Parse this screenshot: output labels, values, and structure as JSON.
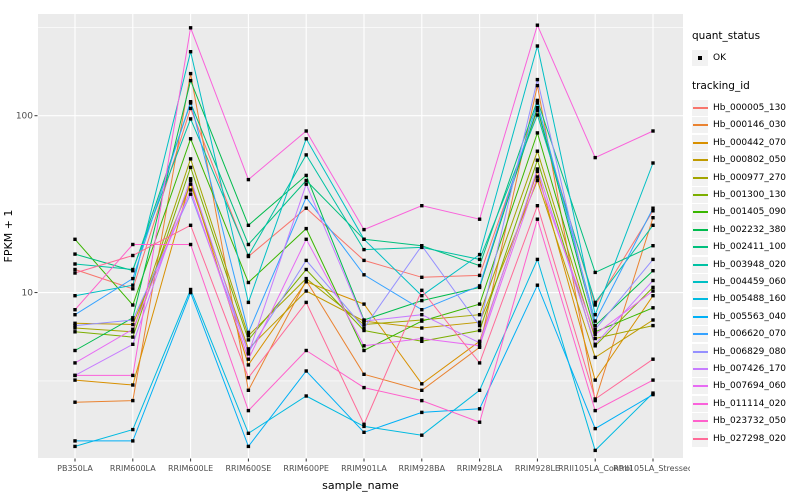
{
  "figure": {
    "background": "#FFFFFF",
    "panel_background": "#EBEBEB",
    "grid_color": "#FFFFFF",
    "axis_text_color": "#4D4D4D",
    "tick_color": "#333333",
    "point_color": "#000000",
    "legend_key_background": "#F2F2F2"
  },
  "legend": {
    "quant_title": "quant_status",
    "quant_items": [
      {
        "label": "OK",
        "marker": "black-square-point"
      }
    ],
    "tracking_title": "tracking_id"
  },
  "chart_data": {
    "type": "line",
    "title": "",
    "xlabel": "sample_name",
    "ylabel": "FPKM + 1",
    "y_scale": "log10",
    "ylim": [
      1.16,
      376
    ],
    "y_tick_labels": [
      {
        "value": 100,
        "label": "100"
      },
      {
        "value": 10,
        "label": "10"
      }
    ],
    "y_major_gridlines": [
      10,
      100
    ],
    "y_minor_gridlines": [
      3.162,
      31.62,
      316.2
    ],
    "grid": true,
    "legend_position": "right",
    "marker": "small-black-square",
    "categories": [
      "PB350LA",
      "RRIM600LA",
      "RRIM600LE",
      "RRIM600SE",
      "RRIM600PE",
      "RRIM901LA",
      "RRIM928BA",
      "RRIM928LA",
      "RRIM928LE",
      "RRII105LA_Control",
      "RRII105LA_Stressed"
    ],
    "series": [
      {
        "name": "Hb_000005_130",
        "color": "#F8766D",
        "values": [
          13.5,
          10.5,
          110,
          16,
          30,
          15.2,
          12.2,
          12.5,
          107,
          8.5,
          29
        ]
      },
      {
        "name": "Hb_000146_030",
        "color": "#EA8331",
        "values": [
          2.4,
          2.45,
          173,
          2.8,
          11.7,
          3.45,
          2.8,
          4.9,
          148,
          2.45,
          26.5
        ]
      },
      {
        "name": "Hb_000442_070",
        "color": "#D89000",
        "values": [
          3.2,
          3.0,
          43,
          3.9,
          11.5,
          8.6,
          3.05,
          5.3,
          48.5,
          3.2,
          9.6
        ]
      },
      {
        "name": "Hb_000802_050",
        "color": "#C09B00",
        "values": [
          6.7,
          6.6,
          41,
          4.8,
          10.2,
          6.9,
          6.3,
          6.8,
          43,
          4.3,
          7.0
        ]
      },
      {
        "name": "Hb_000977_270",
        "color": "#A3A500",
        "values": [
          6.3,
          6.0,
          57,
          5.7,
          12,
          6.6,
          7.0,
          7.5,
          63,
          5.5,
          6.5
        ]
      },
      {
        "name": "Hb_001300_130",
        "color": "#7CAE00",
        "values": [
          6.0,
          5.6,
          51,
          5.4,
          13.5,
          6.1,
          5.3,
          6.1,
          56,
          5.0,
          10.7
        ]
      },
      {
        "name": "Hb_001405_090",
        "color": "#39B600",
        "values": [
          20,
          8.5,
          74,
          11.4,
          23,
          4.7,
          6.9,
          8.6,
          80,
          6.0,
          8.2
        ]
      },
      {
        "name": "Hb_002232_380",
        "color": "#00BB4E",
        "values": [
          4.7,
          7.2,
          158,
          24,
          46,
          7.0,
          9.0,
          10.7,
          111,
          6.5,
          13.3
        ]
      },
      {
        "name": "Hb_002411_100",
        "color": "#00BF7D",
        "values": [
          16.5,
          13.3,
          118,
          18.7,
          43,
          20,
          18.4,
          14.2,
          122,
          13,
          18.4
        ]
      },
      {
        "name": "Hb_003948_020",
        "color": "#00C1A3",
        "values": [
          14.5,
          13.5,
          96,
          16.2,
          60,
          17.5,
          18,
          15.4,
          101,
          8.8,
          24
        ]
      },
      {
        "name": "Hb_004459_060",
        "color": "#00BFC4",
        "values": [
          9.6,
          11,
          230,
          8.8,
          74,
          20,
          9.6,
          16.4,
          248,
          7.5,
          54
        ]
      },
      {
        "name": "Hb_005488_160",
        "color": "#00BAE0",
        "values": [
          1.35,
          1.68,
          10.4,
          1.6,
          2.6,
          1.75,
          1.56,
          2.8,
          15.4,
          1.28,
          2.7
        ]
      },
      {
        "name": "Hb_005563_040",
        "color": "#00B0F6",
        "values": [
          1.45,
          1.45,
          10,
          1.35,
          3.6,
          1.62,
          2.1,
          2.2,
          11,
          1.7,
          2.65
        ]
      },
      {
        "name": "Hb_006620_070",
        "color": "#35A2FF",
        "values": [
          7.5,
          12,
          120,
          5.95,
          34.5,
          12.6,
          8.0,
          10.9,
          118,
          6.9,
          30
        ]
      },
      {
        "name": "Hb_006829_080",
        "color": "#9590FF",
        "values": [
          6.5,
          7.0,
          36,
          4.6,
          15.2,
          6.3,
          18.4,
          6.5,
          160,
          6.2,
          15.4
        ]
      },
      {
        "name": "Hb_007426_170",
        "color": "#C77CFF",
        "values": [
          3.4,
          5.1,
          44,
          4.5,
          41,
          6.9,
          7.5,
          5.2,
          50,
          5.1,
          11.7
        ]
      },
      {
        "name": "Hb_007694_060",
        "color": "#E76BF3",
        "values": [
          4.0,
          6.2,
          38,
          4.2,
          20,
          5.0,
          5.5,
          5.0,
          45,
          5.8,
          10.2
        ]
      },
      {
        "name": "Hb_011114_020",
        "color": "#FA62DB",
        "values": [
          3.4,
          3.4,
          314,
          43.5,
          82,
          22.7,
          31,
          26,
          325,
          58,
          82
        ]
      },
      {
        "name": "Hb_023732_050",
        "color": "#FF61CC",
        "values": [
          8.0,
          18.7,
          18.7,
          2.15,
          4.7,
          2.9,
          2.45,
          1.85,
          26,
          2.15,
          3.2
        ]
      },
      {
        "name": "Hb_027298_020",
        "color": "#FF6A98",
        "values": [
          12.9,
          16.2,
          24,
          3.3,
          8.8,
          1.8,
          10.3,
          4.0,
          31,
          2.5,
          4.2
        ]
      }
    ]
  }
}
